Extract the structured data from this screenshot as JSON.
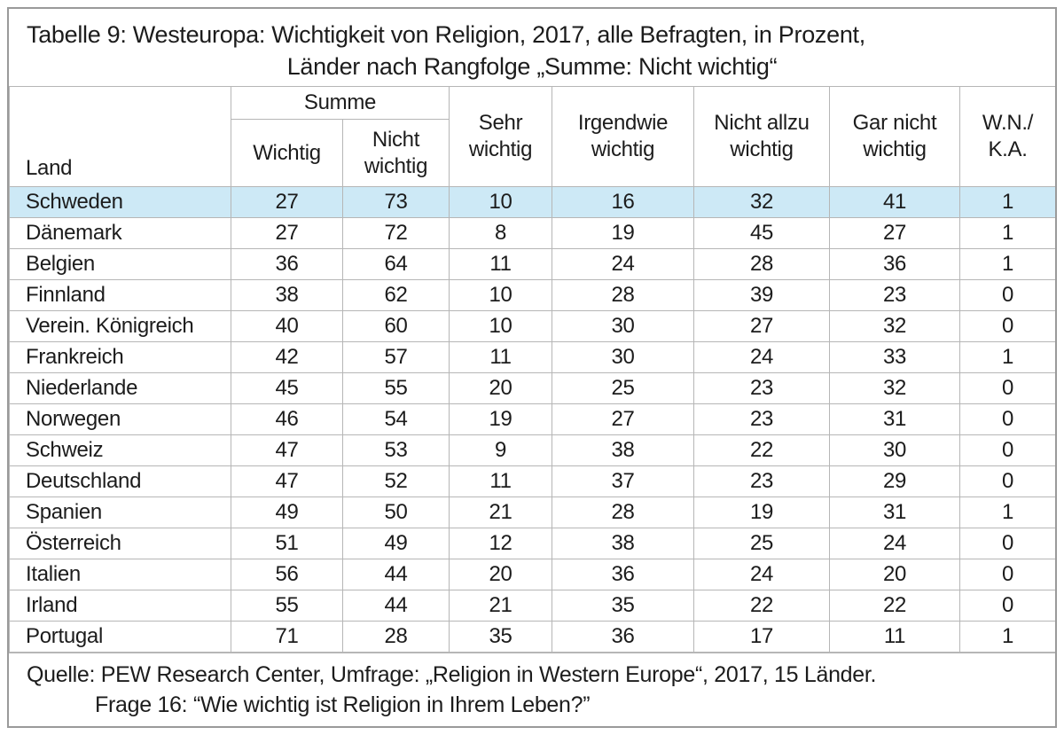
{
  "title": {
    "line1": "Tabelle 9: Westeuropa: Wichtigkeit von Religion, 2017, alle Befragten, in Prozent,",
    "line2": "Länder nach Rangfolge „Summe: Nicht wichtig“"
  },
  "table": {
    "headers": {
      "land": "Land",
      "summe": "Summe",
      "wichtig": "Wichtig",
      "nicht_wichtig": "Nicht wichtig",
      "sehr_wichtig": "Sehr wichtig",
      "irgendwie_wichtig": "Irgendwie wichtig",
      "nicht_allzu_wichtig": "Nicht allzu wichtig",
      "gar_nicht_wichtig": "Gar nicht wichtig",
      "wn_ka": "W.N./ K.A."
    },
    "rows": [
      {
        "land": "Schweden",
        "values": [
          27,
          73,
          10,
          16,
          32,
          41,
          1
        ],
        "highlighted": true
      },
      {
        "land": "Dänemark",
        "values": [
          27,
          72,
          8,
          19,
          45,
          27,
          1
        ],
        "highlighted": false
      },
      {
        "land": "Belgien",
        "values": [
          36,
          64,
          11,
          24,
          28,
          36,
          1
        ],
        "highlighted": false
      },
      {
        "land": "Finnland",
        "values": [
          38,
          62,
          10,
          28,
          39,
          23,
          0
        ],
        "highlighted": false
      },
      {
        "land": "Verein. Königreich",
        "values": [
          40,
          60,
          10,
          30,
          27,
          32,
          0
        ],
        "highlighted": false
      },
      {
        "land": "Frankreich",
        "values": [
          42,
          57,
          11,
          30,
          24,
          33,
          1
        ],
        "highlighted": false
      },
      {
        "land": "Niederlande",
        "values": [
          45,
          55,
          20,
          25,
          23,
          32,
          0
        ],
        "highlighted": false
      },
      {
        "land": "Norwegen",
        "values": [
          46,
          54,
          19,
          27,
          23,
          31,
          0
        ],
        "highlighted": false
      },
      {
        "land": "Schweiz",
        "values": [
          47,
          53,
          9,
          38,
          22,
          30,
          0
        ],
        "highlighted": false
      },
      {
        "land": "Deutschland",
        "values": [
          47,
          52,
          11,
          37,
          23,
          29,
          0
        ],
        "highlighted": false
      },
      {
        "land": "Spanien",
        "values": [
          49,
          50,
          21,
          28,
          19,
          31,
          1
        ],
        "highlighted": false
      },
      {
        "land": "Österreich",
        "values": [
          51,
          49,
          12,
          38,
          25,
          24,
          0
        ],
        "highlighted": false
      },
      {
        "land": "Italien",
        "values": [
          56,
          44,
          20,
          36,
          24,
          20,
          0
        ],
        "highlighted": false
      },
      {
        "land": "Irland",
        "values": [
          55,
          44,
          21,
          35,
          22,
          22,
          0
        ],
        "highlighted": false
      },
      {
        "land": "Portugal",
        "values": [
          71,
          28,
          35,
          36,
          17,
          11,
          1
        ],
        "highlighted": false
      }
    ]
  },
  "footer": {
    "line1": "Quelle: PEW Research Center, Umfrage: „Religion in Western Europe“, 2017, 15 Länder.",
    "line2": "Frage 16: “Wie wichtig ist Religion in Ihrem Leben?”"
  },
  "colors": {
    "highlight_row": "#cde9f6",
    "grid_line": "#b6b6b6",
    "outer_border": "#9a9a9a"
  }
}
